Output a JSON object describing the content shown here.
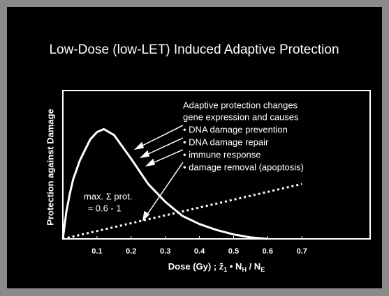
{
  "chart_data": {
    "type": "line",
    "title": "Low-Dose (low-LET) Induced Adaptive Protection",
    "y_label": "Protection against Damage",
    "x_label": [
      "Dose (Gy) ;  ",
      "z̄",
      "1",
      " • N",
      "H",
      " / N",
      "E"
    ],
    "xlim": [
      0,
      0.9
    ],
    "ylim": [
      0,
      1
    ],
    "xticks": [
      0.1,
      0.2,
      0.3,
      0.4,
      0.5,
      0.6,
      0.7
    ],
    "series": [
      {
        "color": "#ffffff",
        "style": "solid",
        "x": [
          0,
          0.01,
          0.02,
          0.03,
          0.05,
          0.08,
          0.1,
          0.12,
          0.15,
          0.2,
          0.25,
          0.3,
          0.35,
          0.4,
          0.45,
          0.5,
          0.55,
          0.6
        ],
        "values": [
          0,
          0.18,
          0.3,
          0.4,
          0.53,
          0.67,
          0.72,
          0.74,
          0.7,
          0.54,
          0.37,
          0.25,
          0.155,
          0.1,
          0.06,
          0.03,
          0.01,
          0
        ]
      },
      {
        "color": "#ffffff",
        "style": "dotted",
        "x": [
          0,
          0.7
        ],
        "values": [
          0,
          0.37
        ]
      }
    ],
    "annotations": {
      "heading": [
        "Adaptive protection changes",
        "gene expression and causes"
      ],
      "bullets": [
        "• DNA damage prevention",
        "• DNA damage repair",
        "• immune response",
        "• damage removal (apoptosis)"
      ],
      "max_note": [
        "max. Σ prot.",
        "≈ 0.6 - 1"
      ]
    }
  }
}
